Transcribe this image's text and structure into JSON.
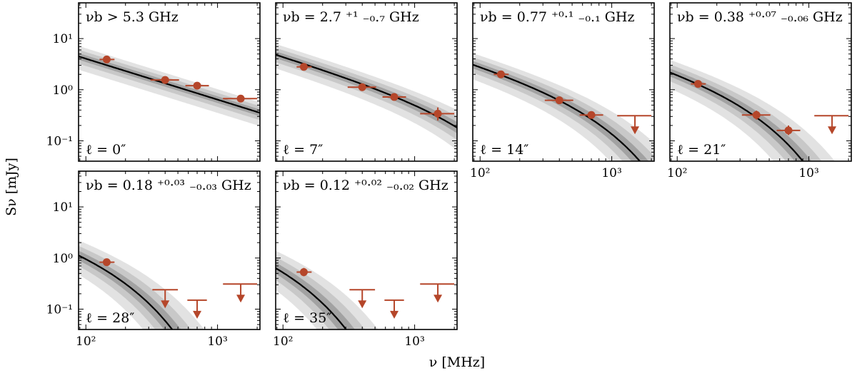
{
  "chart_data": {
    "type": "scatter",
    "xlabel": "ν  [MHz]",
    "ylabel": "Sν  [mJy]",
    "xscale": "log",
    "yscale": "log",
    "xlim": [
      88,
      2100
    ],
    "ylim": [
      0.04,
      50
    ],
    "xticks": [
      {
        "value": 100,
        "label": "10²"
      },
      {
        "value": 1000,
        "label": "10³"
      }
    ],
    "yticks": [
      {
        "value": 0.1,
        "label": "10⁻¹"
      },
      {
        "value": 1,
        "label": "10⁰"
      },
      {
        "value": 10,
        "label": "10¹"
      }
    ],
    "colors": {
      "data": "#b5462a",
      "model": "#000000",
      "band_outer": "#e2e2e2",
      "band_mid": "#c8c8c8",
      "band_inner": "#a2a2a2"
    },
    "panels": [
      {
        "id": "p1",
        "row": 0,
        "col": 0,
        "title": "νb > 5.3 GHz",
        "label": "ℓ = 0″",
        "model": {
          "S0": 4.4,
          "nu0": 90,
          "alpha": -0.8,
          "nub": 1000000
        },
        "points": [
          {
            "x": 144,
            "y": 3.9,
            "xerr": [
              127,
              165
            ]
          },
          {
            "x": 400,
            "y": 1.55,
            "xerr": [
              310,
              510
            ]
          },
          {
            "x": 700,
            "y": 1.2,
            "xerr": [
              570,
              860
            ]
          },
          {
            "x": 1500,
            "y": 0.67,
            "xerr": [
              1100,
              2000
            ]
          }
        ],
        "limits": [],
        "show_xticks": false,
        "show_yticks": true
      },
      {
        "id": "p2",
        "row": 0,
        "col": 1,
        "title": "νb = 2.7 ⁺¹ ₋₀.₇ GHz",
        "label": "ℓ = 7″",
        "model": {
          "S0": 4.9,
          "nu0": 90,
          "alpha": -0.8,
          "nub": 2700
        },
        "points": [
          {
            "x": 144,
            "y": 2.8,
            "xerr": [
              127,
              165
            ]
          },
          {
            "x": 400,
            "y": 1.12,
            "xerr": [
              310,
              510
            ]
          },
          {
            "x": 700,
            "y": 0.72,
            "xerr": [
              570,
              860
            ]
          },
          {
            "x": 1500,
            "y": 0.34,
            "xerr": [
              1100,
              2000
            ],
            "yerr": [
              0.25,
              0.45
            ]
          }
        ],
        "limits": [],
        "show_xticks": false,
        "show_yticks": false
      },
      {
        "id": "p3",
        "row": 0,
        "col": 2,
        "title": "νb = 0.77 ⁺⁰·¹ ₋₀.₁ GHz",
        "label": "ℓ = 14″",
        "model": {
          "S0": 3.4,
          "nu0": 90,
          "alpha": -0.8,
          "nub": 770
        },
        "points": [
          {
            "x": 144,
            "y": 2.0,
            "xerr": [
              127,
              165
            ]
          },
          {
            "x": 400,
            "y": 0.62,
            "xerr": [
              310,
              510
            ]
          },
          {
            "x": 700,
            "y": 0.32,
            "xerr": [
              570,
              860
            ]
          }
        ],
        "limits": [
          {
            "x": 1500,
            "y": 0.31,
            "xerr": [
              1100,
              2000
            ]
          }
        ],
        "show_xticks": true,
        "show_yticks": false
      },
      {
        "id": "p4",
        "row": 0,
        "col": 3,
        "title": "νb = 0.38 ⁺⁰·⁰⁷ ₋₀.₀₆ GHz",
        "label": "ℓ = 21″",
        "model": {
          "S0": 2.7,
          "nu0": 90,
          "alpha": -0.8,
          "nub": 380
        },
        "points": [
          {
            "x": 144,
            "y": 1.3,
            "xerr": [
              127,
              165
            ]
          },
          {
            "x": 400,
            "y": 0.32,
            "xerr": [
              310,
              510
            ],
            "yerr": [
              0.26,
              0.39
            ]
          },
          {
            "x": 700,
            "y": 0.16,
            "xerr": [
              570,
              860
            ],
            "yerr": [
              0.13,
              0.2
            ]
          }
        ],
        "limits": [
          {
            "x": 1500,
            "y": 0.31,
            "xerr": [
              1100,
              2000
            ]
          }
        ],
        "show_xticks": true,
        "show_yticks": false
      },
      {
        "id": "p5",
        "row": 1,
        "col": 0,
        "title": "νb = 0.18 ⁺⁰·⁰³ ₋₀.₀₃ GHz",
        "label": "ℓ = 28″",
        "model": {
          "S0": 1.8,
          "nu0": 90,
          "alpha": -0.8,
          "nub": 180
        },
        "points": [
          {
            "x": 144,
            "y": 0.83,
            "xerr": [
              127,
              165
            ]
          }
        ],
        "limits": [
          {
            "x": 400,
            "y": 0.24,
            "xerr": [
              320,
              500
            ]
          },
          {
            "x": 700,
            "y": 0.15,
            "xerr": [
              590,
              830
            ]
          },
          {
            "x": 1500,
            "y": 0.31,
            "xerr": [
              1100,
              2000
            ]
          }
        ],
        "show_xticks": true,
        "show_yticks": true
      },
      {
        "id": "p6",
        "row": 1,
        "col": 1,
        "title": "νb = 0.12 ⁺⁰·⁰² ₋₀.₀₂ GHz",
        "label": "ℓ = 35″",
        "model": {
          "S0": 1.3,
          "nu0": 90,
          "alpha": -0.8,
          "nub": 120
        },
        "points": [
          {
            "x": 144,
            "y": 0.53,
            "xerr": [
              127,
              165
            ],
            "yerr": [
              0.44,
              0.64
            ]
          }
        ],
        "limits": [
          {
            "x": 400,
            "y": 0.24,
            "xerr": [
              320,
              500
            ]
          },
          {
            "x": 700,
            "y": 0.15,
            "xerr": [
              590,
              830
            ]
          },
          {
            "x": 1500,
            "y": 0.31,
            "xerr": [
              1100,
              2000
            ]
          }
        ],
        "show_xticks": true,
        "show_yticks": false
      }
    ]
  }
}
